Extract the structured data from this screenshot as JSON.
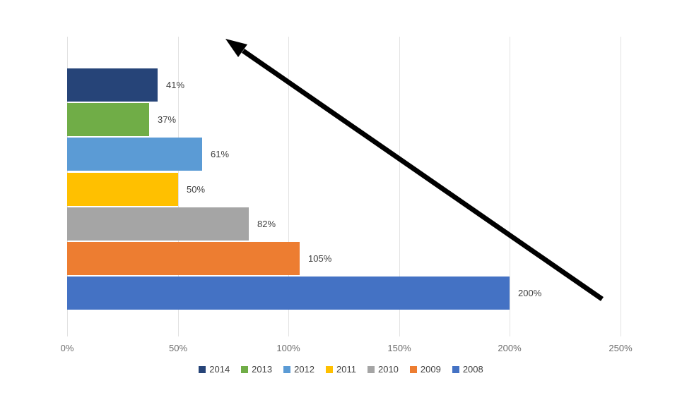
{
  "chart_data": {
    "type": "bar",
    "orientation": "horizontal",
    "title": "",
    "xlabel": "",
    "ylabel": "",
    "categories": [
      "2014",
      "2013",
      "2012",
      "2011",
      "2010",
      "2009",
      "2008"
    ],
    "values": [
      41,
      37,
      61,
      50,
      82,
      105,
      200
    ],
    "value_labels": [
      "41%",
      "37%",
      "61%",
      "50%",
      "82%",
      "105%",
      "200%"
    ],
    "bar_colors": [
      "#264478",
      "#70AD47",
      "#5B9BD5",
      "#FFC000",
      "#A5A5A5",
      "#ED7D31",
      "#4472C4"
    ],
    "xlim": [
      0,
      250
    ],
    "x_ticks": [
      0,
      50,
      100,
      150,
      200,
      250
    ],
    "x_tick_labels": [
      "0%",
      "50%",
      "100%",
      "150%",
      "200%",
      "250%"
    ],
    "grid": true,
    "legend": {
      "position": "bottom",
      "entries": [
        {
          "label": "2014",
          "color": "#264478"
        },
        {
          "label": "2013",
          "color": "#70AD47"
        },
        {
          "label": "2012",
          "color": "#5B9BD5"
        },
        {
          "label": "2011",
          "color": "#FFC000"
        },
        {
          "label": "2010",
          "color": "#A5A5A5"
        },
        {
          "label": "2009",
          "color": "#ED7D31"
        },
        {
          "label": "2008",
          "color": "#4472C4"
        }
      ]
    },
    "annotation": {
      "type": "arrow",
      "direction": "up-left",
      "color": "#000000"
    }
  },
  "colors": {
    "background": "#ffffff",
    "gridline": "#e2e2e2",
    "axis_text": "#6e6e6e",
    "data_label_text": "#3f3f3f",
    "legend_text": "#424242",
    "arrow": "#000000"
  }
}
